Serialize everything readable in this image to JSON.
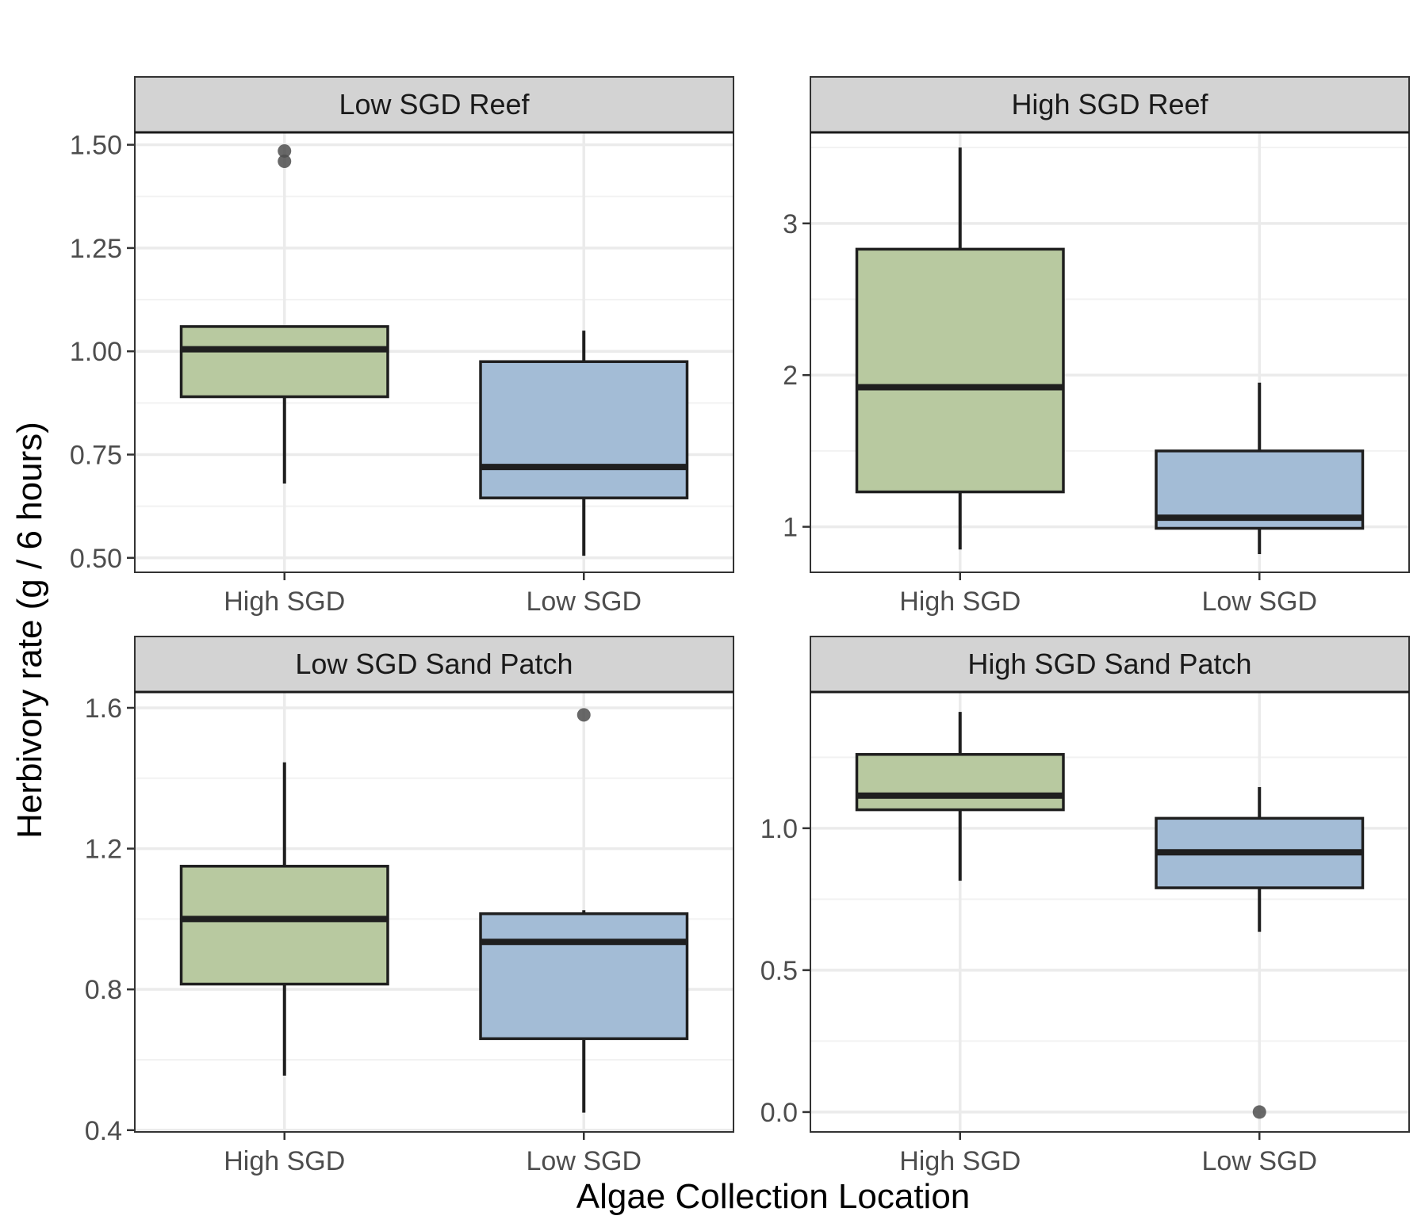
{
  "xlabel": "Algae Collection Location",
  "ylabel": "Herbivory rate (g / 6 hours)",
  "colors": {
    "High SGD": "#b8c9a0",
    "Low SGD": "#a3bcd6",
    "panel_border": "#333333",
    "strip_fill": "#d3d3d3",
    "grid_major": "#ebebeb",
    "grid_minor": "#f2f2f2",
    "outlier": "#4d4d4d"
  },
  "chart_data": [
    {
      "type": "box",
      "title": "Low SGD Reef",
      "categories": [
        "High SGD",
        "Low SGD"
      ],
      "ylim": [
        0.465,
        1.53
      ],
      "yticks": [
        0.5,
        0.75,
        1.0,
        1.25,
        1.5
      ],
      "ytick_labels": [
        "0.50",
        "0.75",
        "1.00",
        "1.25",
        "1.50"
      ],
      "boxes": [
        {
          "category": "High SGD",
          "lower_whisker": 0.68,
          "q1": 0.89,
          "median": 1.005,
          "q3": 1.06,
          "upper_whisker": 1.06,
          "outliers": [
            1.46,
            1.485
          ]
        },
        {
          "category": "Low SGD",
          "lower_whisker": 0.505,
          "q1": 0.645,
          "median": 0.72,
          "q3": 0.975,
          "upper_whisker": 1.05,
          "outliers": []
        }
      ]
    },
    {
      "type": "box",
      "title": "High SGD Reef",
      "categories": [
        "High SGD",
        "Low SGD"
      ],
      "ylim": [
        0.7,
        3.6
      ],
      "yticks": [
        1,
        2,
        3
      ],
      "ytick_labels": [
        "1",
        "2",
        "3"
      ],
      "boxes": [
        {
          "category": "High SGD",
          "lower_whisker": 0.85,
          "q1": 1.23,
          "median": 1.92,
          "q3": 2.83,
          "upper_whisker": 3.5,
          "outliers": []
        },
        {
          "category": "Low SGD",
          "lower_whisker": 0.82,
          "q1": 0.99,
          "median": 1.06,
          "q3": 1.5,
          "upper_whisker": 1.95,
          "outliers": []
        }
      ]
    },
    {
      "type": "box",
      "title": "Low SGD Sand Patch",
      "categories": [
        "High SGD",
        "Low SGD"
      ],
      "ylim": [
        0.395,
        1.645
      ],
      "yticks": [
        0.4,
        0.8,
        1.2,
        1.6
      ],
      "ytick_labels": [
        "0.4",
        "0.8",
        "1.2",
        "1.6"
      ],
      "boxes": [
        {
          "category": "High SGD",
          "lower_whisker": 0.555,
          "q1": 0.815,
          "median": 1.0,
          "q3": 1.15,
          "upper_whisker": 1.445,
          "outliers": []
        },
        {
          "category": "Low SGD",
          "lower_whisker": 0.45,
          "q1": 0.66,
          "median": 0.935,
          "q3": 1.015,
          "upper_whisker": 1.025,
          "outliers": [
            1.58
          ]
        }
      ]
    },
    {
      "type": "box",
      "title": "High SGD Sand Patch",
      "categories": [
        "High SGD",
        "Low SGD"
      ],
      "ylim": [
        -0.07,
        1.48
      ],
      "yticks": [
        0.0,
        0.5,
        1.0
      ],
      "ytick_labels": [
        "0.0",
        "0.5",
        "1.0"
      ],
      "boxes": [
        {
          "category": "High SGD",
          "lower_whisker": 0.815,
          "q1": 1.065,
          "median": 1.115,
          "q3": 1.26,
          "upper_whisker": 1.41,
          "outliers": []
        },
        {
          "category": "Low SGD",
          "lower_whisker": 0.635,
          "q1": 0.79,
          "median": 0.915,
          "q3": 1.035,
          "upper_whisker": 1.145,
          "outliers": [
            0.0
          ]
        }
      ]
    }
  ]
}
